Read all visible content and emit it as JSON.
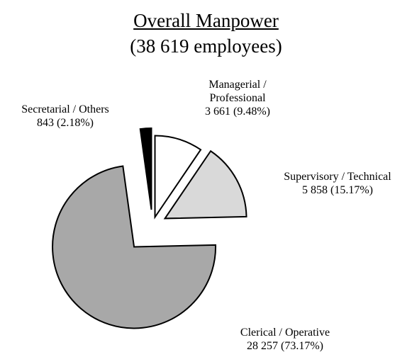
{
  "chart_data": {
    "type": "pie",
    "title": "Overall Manpower",
    "subtitle": "(38 619 employees)",
    "categories": [
      "Managerial / Professional",
      "Supervisory / Technical",
      "Clerical / Operative",
      "Secretarial / Others"
    ],
    "values": [
      3661,
      5858,
      28257,
      843
    ],
    "value_labels": [
      "3 661 (9.48%)",
      "5 858 (15.17%)",
      "28 257 (73.17%)",
      "843 (2.18%)"
    ],
    "colors": [
      "#ffffff",
      "#d9d9d9",
      "#a8a8a8",
      "#000000"
    ]
  }
}
